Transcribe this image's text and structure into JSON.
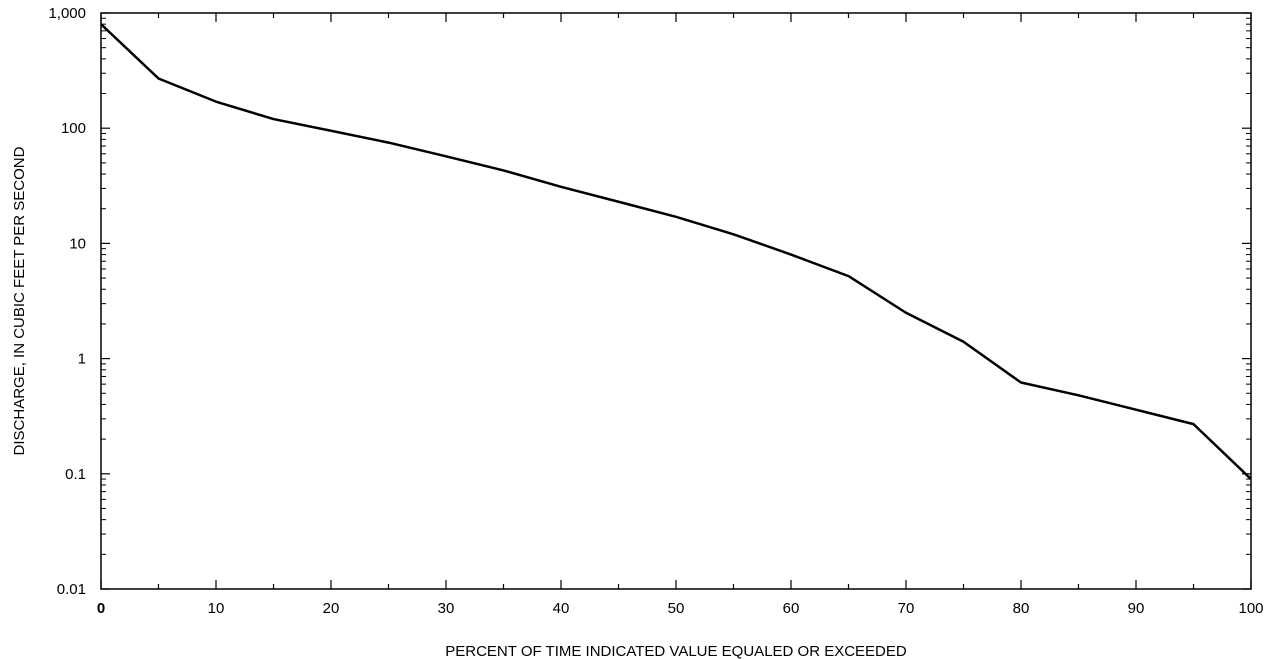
{
  "chart_data": {
    "type": "line",
    "title": "",
    "xlabel": "PERCENT OF TIME INDICATED VALUE EQUALED OR EXCEEDED",
    "ylabel": "DISCHARGE, IN CUBIC FEET PER SECOND",
    "xlim": [
      0,
      100
    ],
    "ylim": [
      0.01,
      1000
    ],
    "yscale": "log",
    "grid": false,
    "x_ticks": [
      0,
      10,
      20,
      30,
      40,
      50,
      60,
      70,
      80,
      90,
      100
    ],
    "x_tick_labels": [
      "0",
      "10",
      "20",
      "30",
      "40",
      "50",
      "60",
      "70",
      "80",
      "90",
      "100"
    ],
    "y_ticks": [
      0.01,
      0.1,
      1,
      10,
      100,
      1000
    ],
    "y_tick_labels": [
      "0.01",
      "0.1",
      "1",
      "10",
      "100",
      "1,000"
    ],
    "series": [
      {
        "color": "#000000",
        "x": [
          0,
          5,
          10,
          15,
          20,
          25,
          30,
          35,
          40,
          45,
          50,
          55,
          60,
          65,
          70,
          75,
          80,
          85,
          90,
          95,
          100
        ],
        "y": [
          800,
          270,
          170,
          120,
          95,
          75,
          57,
          43,
          31,
          23,
          17,
          12,
          8,
          5.2,
          2.5,
          1.4,
          0.62,
          0.48,
          0.36,
          0.27,
          0.09
        ]
      }
    ]
  }
}
